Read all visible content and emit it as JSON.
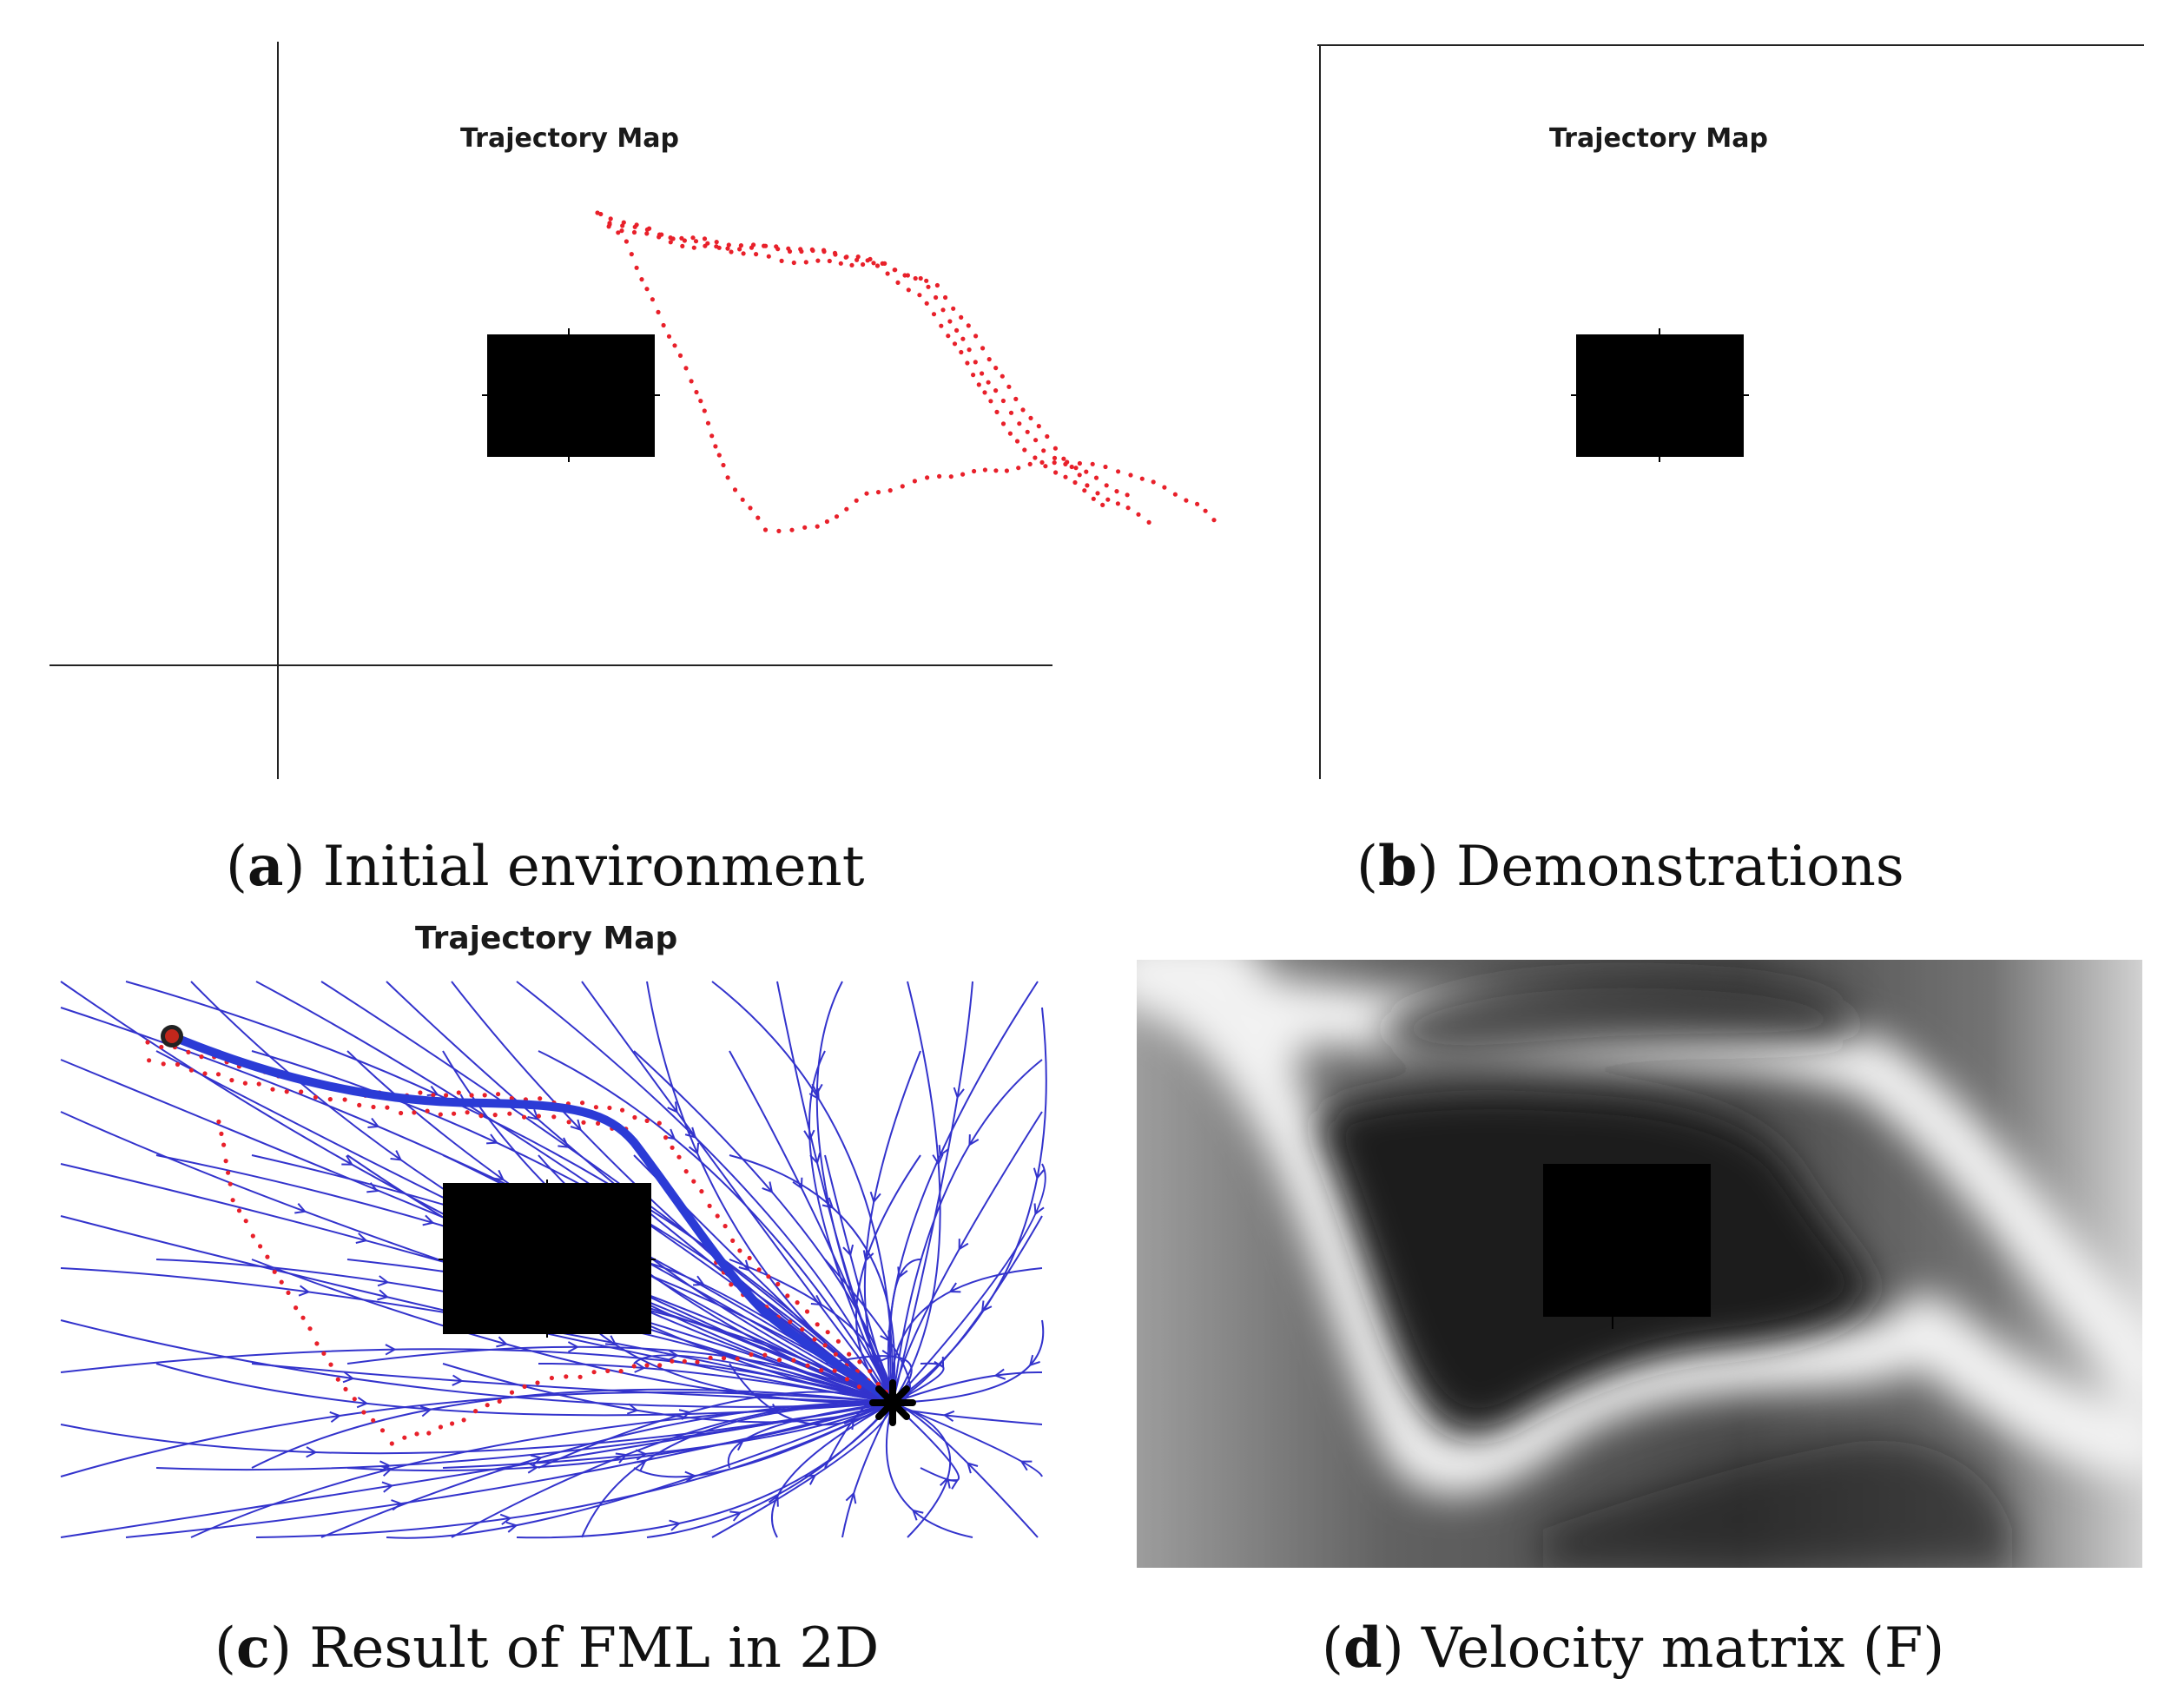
{
  "panels": [
    {
      "id": "a",
      "plot_title": "Trajectory Map",
      "letter": "a",
      "caption": "Initial environment"
    },
    {
      "id": "b",
      "plot_title": "Trajectory Map",
      "letter": "b",
      "caption": "Demonstrations"
    },
    {
      "id": "c",
      "plot_title": "Trajectory Map",
      "letter": "c",
      "caption": "Result of FML in 2D"
    },
    {
      "id": "d",
      "plot_title": "",
      "letter": "d",
      "caption": "Velocity matrix (F)"
    }
  ],
  "colors": {
    "obstacle": "#000000",
    "demonstration_points": "#e8202a",
    "streamlines": "#3333cc",
    "learned_path": "#2b3bd6"
  },
  "icons": {
    "start_marker": "start-dot-icon",
    "goal_marker": "goal-asterisk-icon"
  }
}
